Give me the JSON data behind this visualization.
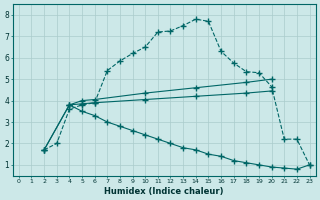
{
  "bg_color": "#cce8e8",
  "line_color": "#006666",
  "grid_color": "#aacccc",
  "xlabel": "Humidex (Indice chaleur)",
  "xlim": [
    -0.5,
    23.5
  ],
  "ylim": [
    0.5,
    8.5
  ],
  "xticks": [
    0,
    1,
    2,
    3,
    4,
    5,
    6,
    7,
    8,
    9,
    10,
    11,
    12,
    13,
    14,
    15,
    16,
    17,
    18,
    19,
    20,
    21,
    22,
    23
  ],
  "yticks": [
    1,
    2,
    3,
    4,
    5,
    6,
    7,
    8
  ],
  "line1_x": [
    2,
    3,
    4,
    5,
    6,
    7,
    8,
    9,
    10,
    11,
    12,
    13,
    14,
    15,
    16,
    17,
    18,
    19,
    20,
    21,
    22,
    23
  ],
  "line1_y": [
    1.7,
    2.0,
    3.6,
    3.8,
    3.9,
    5.4,
    5.85,
    6.2,
    6.5,
    7.2,
    7.25,
    7.5,
    7.8,
    7.7,
    6.3,
    5.75,
    5.35,
    5.3,
    4.65,
    2.2,
    2.2,
    1.0
  ],
  "line2_x": [
    2,
    4,
    5,
    6,
    10,
    14,
    18,
    20
  ],
  "line2_y": [
    1.7,
    3.8,
    4.0,
    4.05,
    4.35,
    4.6,
    4.85,
    5.0
  ],
  "line3_x": [
    2,
    4,
    5,
    6,
    10,
    14,
    18,
    20
  ],
  "line3_y": [
    1.7,
    3.8,
    3.85,
    3.9,
    4.05,
    4.2,
    4.35,
    4.45
  ],
  "line4_x": [
    4,
    5,
    6,
    7,
    8,
    9,
    10,
    11,
    12,
    13,
    14,
    15,
    16,
    17,
    18,
    19,
    20,
    21,
    22,
    23
  ],
  "line4_y": [
    3.8,
    3.5,
    3.3,
    3.0,
    2.8,
    2.6,
    2.4,
    2.2,
    2.0,
    1.8,
    1.7,
    1.5,
    1.4,
    1.2,
    1.1,
    1.0,
    0.9,
    0.85,
    0.8,
    1.0
  ]
}
